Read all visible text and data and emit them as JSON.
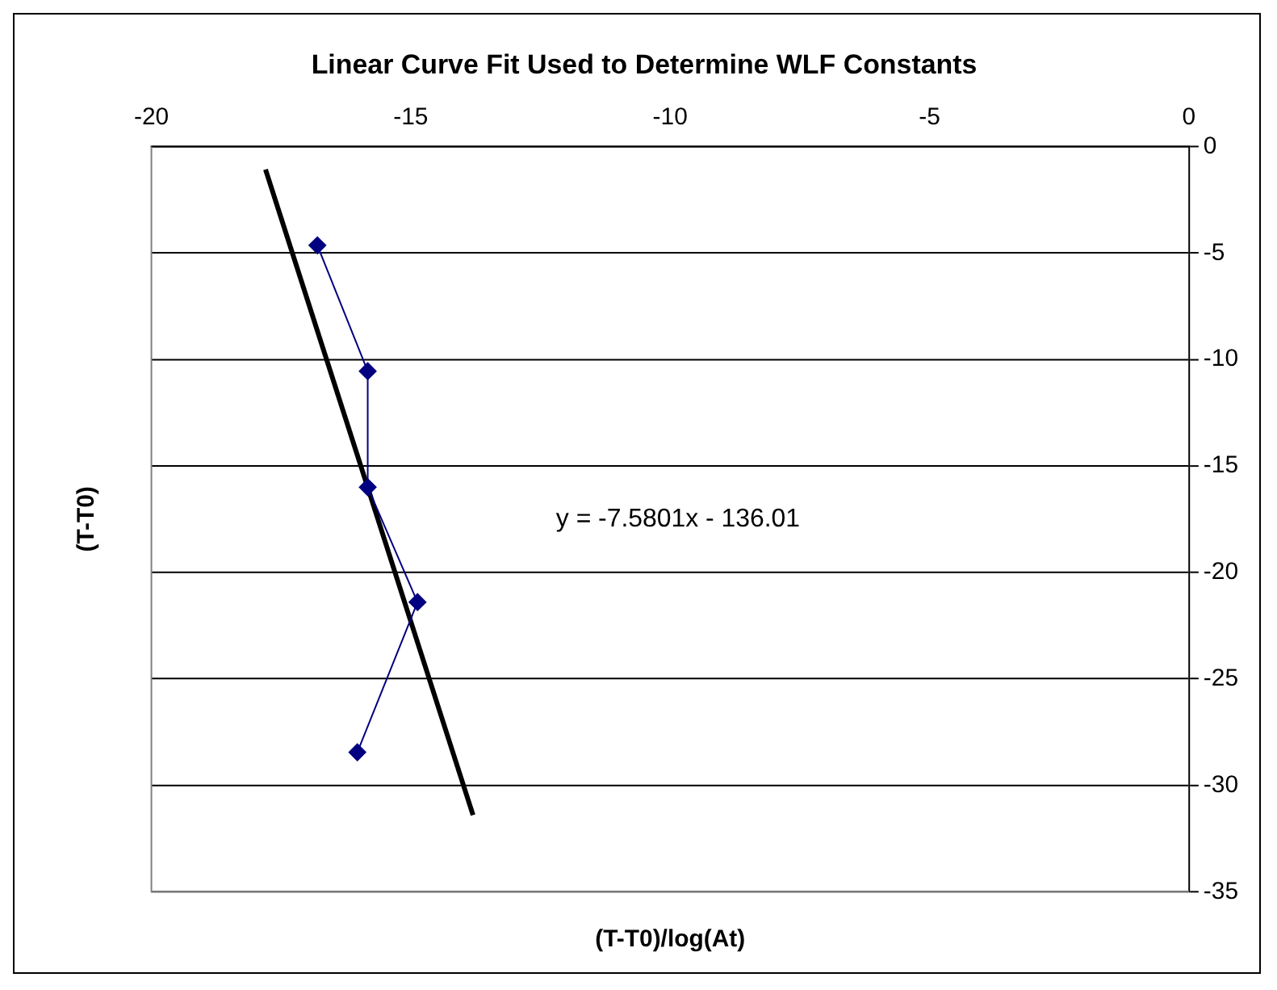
{
  "chart_data": {
    "type": "line",
    "title": "Linear Curve Fit Used to Determine WLF Constants",
    "xlabel": "(T-T0)/log(At)",
    "ylabel": "(T-T0)",
    "x": [
      -16.8,
      -15.83,
      -15.83,
      -14.87,
      -16.03
    ],
    "series": [
      {
        "color": "#000080",
        "values": [
          -4.64,
          -10.55,
          -16.0,
          -21.4,
          -28.45
        ]
      },
      {
        "type": "line",
        "color": "#000000",
        "x": [
          -17.8,
          -13.8
        ],
        "values": [
          -1.08,
          -31.4
        ],
        "marker": "none"
      }
    ],
    "xlim": [
      -20,
      0
    ],
    "xticks": [
      -20,
      -15,
      -10,
      -5,
      0
    ],
    "ylim": [
      -35,
      0
    ],
    "yticks": [
      -35,
      -30,
      -25,
      -20,
      -15,
      -10,
      -5,
      0
    ],
    "grid": "y",
    "legend": false,
    "marker": "diamond",
    "line_style": "solid",
    "annotations": [
      "y = -7.5801x - 136.01"
    ]
  }
}
